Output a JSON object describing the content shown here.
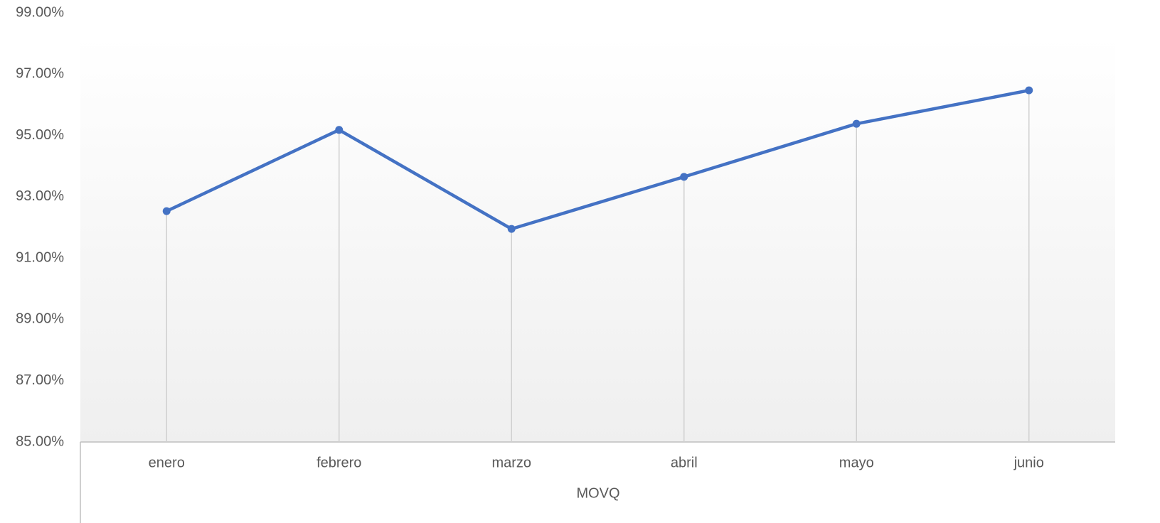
{
  "chart_data": {
    "type": "line",
    "x_label": "MOVQ",
    "categories": [
      "enero",
      "febrero",
      "marzo",
      "abril",
      "mayo",
      "junio"
    ],
    "series": [
      {
        "name": "MOVQ",
        "color": "#4472c4",
        "values": [
          92.53,
          95.18,
          91.95,
          93.65,
          95.38,
          96.47
        ]
      }
    ],
    "ylim": [
      85,
      99
    ],
    "yticks": [
      {
        "value": 85,
        "label": "85.00%"
      },
      {
        "value": 87,
        "label": "87.00%"
      },
      {
        "value": 89,
        "label": "89.00%"
      },
      {
        "value": 91,
        "label": "91.00%"
      },
      {
        "value": 93,
        "label": "93.00%"
      },
      {
        "value": 95,
        "label": "95.00%"
      },
      {
        "value": 97,
        "label": "97.00%"
      },
      {
        "value": 99,
        "label": "99.00%"
      }
    ],
    "grid": false,
    "drop_lines": true,
    "markers": true
  }
}
